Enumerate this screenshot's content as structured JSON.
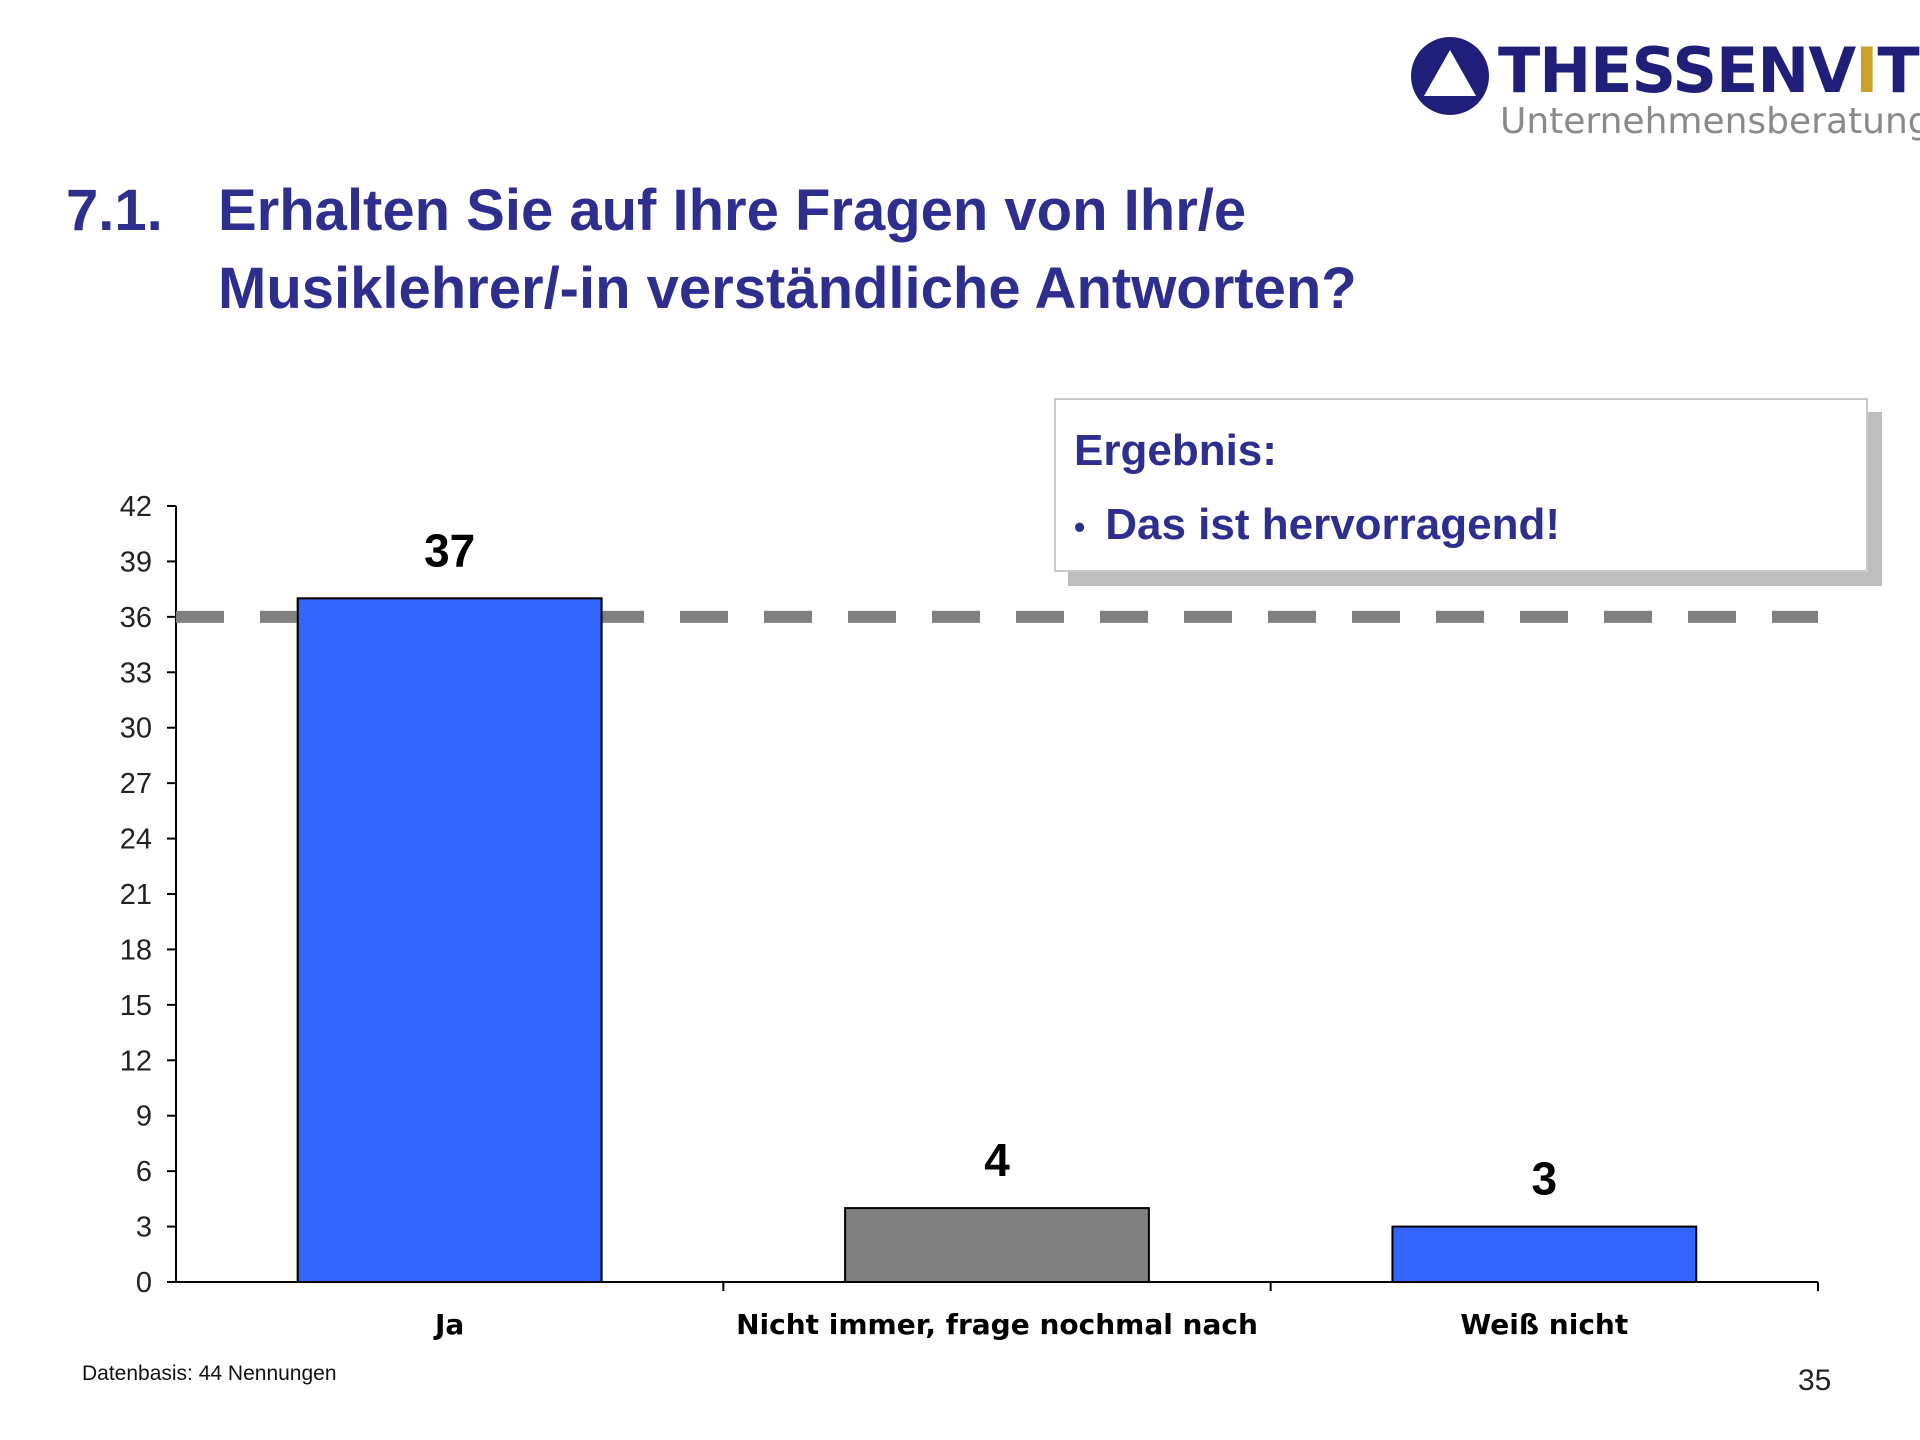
{
  "logo": {
    "brand_main": "THESSENV",
    "brand_accent": "I",
    "brand_end": "TZ",
    "subtitle": "Unternehmensberatung"
  },
  "slide": {
    "number": "7.1.",
    "title_line1": "Erhalten Sie auf Ihre Fragen von Ihr/e",
    "title_line2": "Musiklehrer/-in verständliche Antworten?"
  },
  "result": {
    "title": "Ergebnis:",
    "bullet": "•",
    "item": "Das ist hervorragend!"
  },
  "chart_data": {
    "type": "bar",
    "categories": [
      "Ja",
      "Nicht immer, frage nochmal nach",
      "Weiß nicht"
    ],
    "values": [
      37,
      4,
      3
    ],
    "bar_colors": [
      "#3366ff",
      "#808080",
      "#3366ff"
    ],
    "ylim": [
      0,
      42
    ],
    "yticks": [
      0,
      3,
      6,
      9,
      12,
      15,
      18,
      21,
      24,
      27,
      30,
      33,
      36,
      39,
      42
    ],
    "reference_line": 36,
    "reference_color": "#808080",
    "title": "",
    "xlabel": "",
    "ylabel": ""
  },
  "footnote": "Datenbasis: 44 Nennungen",
  "page_number": "35"
}
